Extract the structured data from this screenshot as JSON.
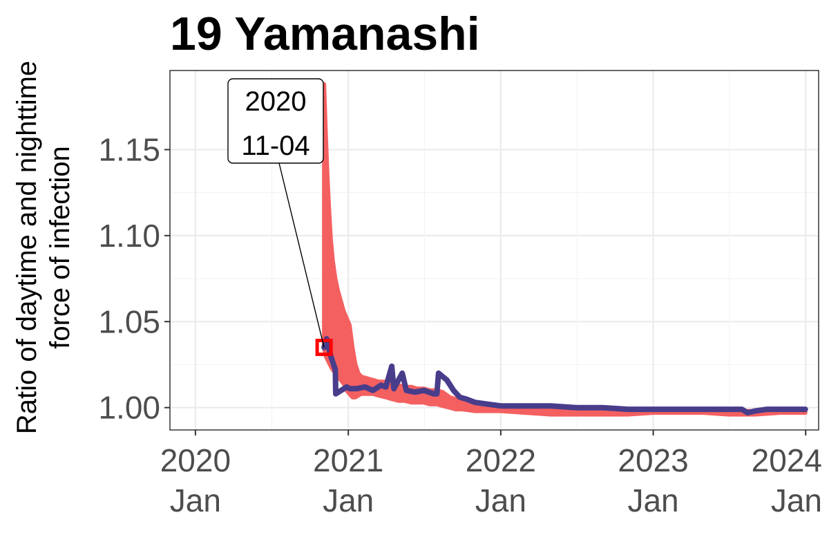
{
  "chart_data": {
    "type": "line",
    "title": "19 Yamanashi",
    "xlabel": "",
    "ylabel": [
      "Ratio of daytime and nighttime",
      "force of infection"
    ],
    "x_ticks": [
      {
        "date": "2020-01-01",
        "label": [
          "2020",
          "Jan"
        ]
      },
      {
        "date": "2021-01-01",
        "label": [
          "2021",
          "Jan"
        ]
      },
      {
        "date": "2022-01-01",
        "label": [
          "2022",
          "Jan"
        ]
      },
      {
        "date": "2023-01-01",
        "label": [
          "2023",
          "Jan"
        ]
      },
      {
        "date": "2024-01-01",
        "label": [
          "2024",
          "Jan"
        ]
      }
    ],
    "y_ticks": [
      1.0,
      1.05,
      1.1,
      1.15
    ],
    "xlim": [
      "2019-11-01",
      "2024-02-01"
    ],
    "ylim": [
      0.987,
      1.196
    ],
    "grid": true,
    "series": [
      {
        "color": "#f46060",
        "band": true,
        "x": [
          "2020-11-04",
          "2020-11-08",
          "2020-11-12",
          "2020-11-16",
          "2020-11-20",
          "2020-11-25",
          "2020-12-01",
          "2020-12-07",
          "2020-12-14",
          "2020-12-21",
          "2020-12-28",
          "2021-01-04",
          "2021-01-11",
          "2021-01-18",
          "2021-01-25",
          "2021-02-01",
          "2021-02-15",
          "2021-03-01",
          "2021-03-15",
          "2021-04-01",
          "2021-04-15",
          "2021-05-01",
          "2021-05-15",
          "2021-06-01",
          "2021-06-15",
          "2021-07-01",
          "2021-07-15",
          "2021-08-01",
          "2021-08-15",
          "2021-09-01",
          "2021-09-15",
          "2021-10-01",
          "2021-11-01",
          "2021-12-01",
          "2022-01-01",
          "2022-03-01",
          "2022-05-01",
          "2022-07-01",
          "2022-09-01",
          "2022-11-01",
          "2023-01-01",
          "2023-03-01",
          "2023-05-01",
          "2023-07-01",
          "2023-09-01",
          "2023-11-01",
          "2023-12-31"
        ],
        "high": [
          1.188,
          1.16,
          1.135,
          1.115,
          1.098,
          1.085,
          1.075,
          1.068,
          1.062,
          1.056,
          1.052,
          1.048,
          1.035,
          1.025,
          1.02,
          1.018,
          1.017,
          1.016,
          1.015,
          1.015,
          1.014,
          1.013,
          1.012,
          1.012,
          1.011,
          1.011,
          1.01,
          1.01,
          1.009,
          1.006,
          1.005,
          1.004,
          1.003,
          1.002,
          1.001,
          1.0,
          1.0,
          0.999,
          0.999,
          0.999,
          0.999,
          0.999,
          0.999,
          0.998,
          0.998,
          0.998,
          0.998
        ],
        "low": [
          1.035,
          1.03,
          1.028,
          1.026,
          1.024,
          1.022,
          1.02,
          1.018,
          1.016,
          1.014,
          1.01,
          1.008,
          1.006,
          1.006,
          1.007,
          1.008,
          1.008,
          1.008,
          1.007,
          1.006,
          1.005,
          1.004,
          1.004,
          1.003,
          1.003,
          1.003,
          1.002,
          1.002,
          1.001,
          1.0,
          0.999,
          0.999,
          0.998,
          0.998,
          0.998,
          0.997,
          0.996,
          0.996,
          0.996,
          0.996,
          0.997,
          0.997,
          0.997,
          0.996,
          0.996,
          0.997,
          0.997
        ]
      },
      {
        "color": "#483d8b",
        "band": false,
        "x": [
          "2020-11-04",
          "2020-11-10",
          "2020-11-20",
          "2020-12-01",
          "2020-12-02",
          "2020-12-15",
          "2020-12-28",
          "2021-01-05",
          "2021-01-20",
          "2021-02-10",
          "2021-03-01",
          "2021-03-20",
          "2021-04-01",
          "2021-04-15",
          "2021-04-20",
          "2021-05-10",
          "2021-05-20",
          "2021-06-10",
          "2021-07-01",
          "2021-07-25",
          "2021-08-01",
          "2021-08-05",
          "2021-08-25",
          "2021-09-10",
          "2021-09-25",
          "2021-10-10",
          "2021-11-01",
          "2021-12-01",
          "2022-01-01",
          "2022-03-01",
          "2022-05-01",
          "2022-07-01",
          "2022-09-01",
          "2022-11-01",
          "2023-01-01",
          "2023-03-01",
          "2023-05-01",
          "2023-07-01",
          "2023-08-01",
          "2023-08-15",
          "2023-09-01",
          "2023-10-01",
          "2023-11-01",
          "2023-12-31"
        ],
        "y": [
          1.035,
          1.04,
          1.03,
          1.022,
          1.008,
          1.01,
          1.012,
          1.011,
          1.011,
          1.012,
          1.01,
          1.013,
          1.012,
          1.024,
          1.011,
          1.02,
          1.01,
          1.009,
          1.01,
          1.008,
          1.008,
          1.02,
          1.016,
          1.01,
          1.006,
          1.005,
          1.003,
          1.002,
          1.001,
          1.001,
          1.001,
          1.0,
          1.0,
          0.999,
          0.999,
          0.999,
          0.999,
          0.999,
          0.999,
          0.997,
          0.998,
          0.999,
          0.999,
          0.999
        ]
      }
    ],
    "marker": {
      "date": "2020-11-04",
      "value": 1.035,
      "color": "#ff0000"
    },
    "annotation": {
      "lines": [
        "2020",
        "11-04"
      ],
      "target_date": "2020-11-04",
      "target_value": 1.035
    }
  }
}
